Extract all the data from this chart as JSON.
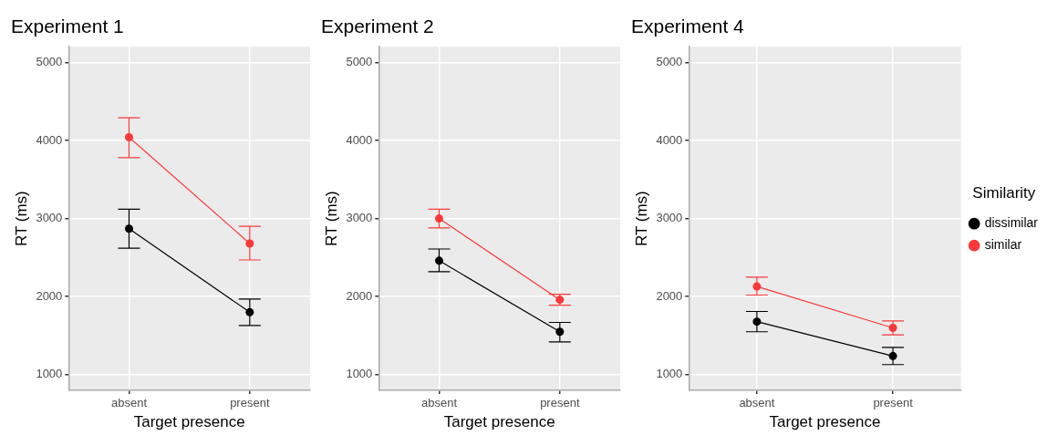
{
  "chart_data": [
    {
      "type": "line",
      "title": "Experiment 1",
      "xlabel": "Target presence",
      "ylabel": "RT (ms)",
      "categories": [
        "absent",
        "present"
      ],
      "ylim": [
        800,
        5200
      ],
      "yticks": [
        1000,
        2000,
        3000,
        4000,
        5000
      ],
      "grid": true,
      "marker": "circle",
      "legend": false,
      "series": [
        {
          "color": "#000000",
          "values": [
            2870,
            1800
          ],
          "errors": [
            [
              2620,
              3120
            ],
            [
              1630,
              1970
            ]
          ]
        },
        {
          "color": "#f8393a",
          "values": [
            4040,
            2680
          ],
          "errors": [
            [
              3780,
              4290
            ],
            [
              2470,
              2900
            ]
          ]
        }
      ]
    },
    {
      "type": "line",
      "title": "Experiment 2",
      "xlabel": "Target presence",
      "ylabel": "RT (ms)",
      "categories": [
        "absent",
        "present"
      ],
      "ylim": [
        800,
        5200
      ],
      "yticks": [
        1000,
        2000,
        3000,
        4000,
        5000
      ],
      "grid": true,
      "marker": "circle",
      "legend": false,
      "series": [
        {
          "color": "#000000",
          "values": [
            2460,
            1550
          ],
          "errors": [
            [
              2320,
              2610
            ],
            [
              1420,
              1670
            ]
          ]
        },
        {
          "color": "#f8393a",
          "values": [
            3000,
            1960
          ],
          "errors": [
            [
              2880,
              3120
            ],
            [
              1890,
              2030
            ]
          ]
        }
      ]
    },
    {
      "type": "line",
      "title": "Experiment 4",
      "xlabel": "Target presence",
      "ylabel": "RT (ms)",
      "categories": [
        "absent",
        "present"
      ],
      "ylim": [
        800,
        5200
      ],
      "yticks": [
        1000,
        2000,
        3000,
        4000,
        5000
      ],
      "grid": true,
      "marker": "circle",
      "legend": "right",
      "legend_title": "Similarity",
      "series": [
        {
          "name": "dissimilar",
          "color": "#000000",
          "values": [
            1680,
            1240
          ],
          "errors": [
            [
              1550,
              1810
            ],
            [
              1130,
              1350
            ]
          ]
        },
        {
          "name": "similar",
          "color": "#f8393a",
          "values": [
            2130,
            1600
          ],
          "errors": [
            [
              2020,
              2250
            ],
            [
              1510,
              1690
            ]
          ]
        }
      ]
    }
  ]
}
